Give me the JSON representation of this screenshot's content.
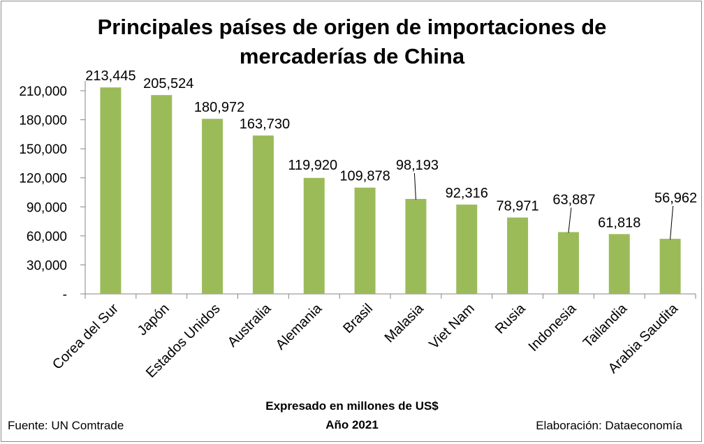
{
  "chart_data": {
    "type": "bar",
    "title_line1": "Principales países de origen de importaciones de",
    "title_line2": "mercaderías de China",
    "categories": [
      "Corea del Sur",
      "Japón",
      "Estados Unidos",
      "Australia",
      "Alemania",
      "Brasil",
      "Malasia",
      "Viet Nam",
      "Rusia",
      "Indonesia",
      "Tailandia",
      "Arabia Saudita"
    ],
    "values": [
      213445,
      205524,
      180972,
      163730,
      119920,
      109878,
      98193,
      92316,
      78971,
      63887,
      61818,
      56962
    ],
    "value_labels": [
      "213,445",
      "205,524",
      "180,972",
      "163,730",
      "119,920",
      "109,878",
      "98,193",
      "92,316",
      "78,971",
      "63,887",
      "61,818",
      "56,962"
    ],
    "y_ticks": [
      0,
      30000,
      60000,
      90000,
      120000,
      150000,
      180000,
      210000
    ],
    "y_tick_labels": [
      "-",
      "30,000",
      "60,000",
      "90,000",
      "120,000",
      "150,000",
      "180,000",
      "210,000"
    ],
    "ylim": [
      0,
      210000
    ],
    "grid": false,
    "bar_color": "#9bbb59",
    "xlabel_line1": "Expresado en millones de US$",
    "xlabel_line2": "Año 2021"
  },
  "footer": {
    "source": "Fuente: UN Comtrade",
    "credit": "Elaboración: Dataeconomía"
  }
}
